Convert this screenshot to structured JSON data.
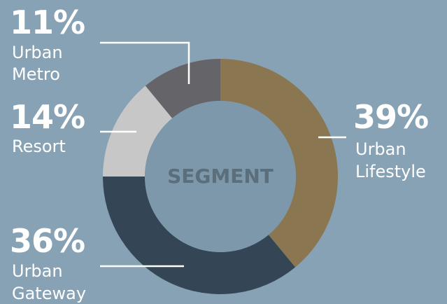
{
  "chart_data": {
    "type": "pie",
    "donut": true,
    "center_label": "SEGMENT",
    "start_angle_deg": 0,
    "slices": [
      {
        "name_line1": "Urban",
        "name_line2": "Lifestyle",
        "value": 39,
        "pct_label": "39%",
        "color": "#8a7650"
      },
      {
        "name_line1": "Urban",
        "name_line2": "Gateway",
        "value": 36,
        "pct_label": "36%",
        "color": "#344655"
      },
      {
        "name_line1": "Resort",
        "name_line2": "",
        "value": 14,
        "pct_label": "14%",
        "color": "#c7c7c7"
      },
      {
        "name_line1": "Urban",
        "name_line2": "Metro",
        "value": 11,
        "pct_label": "11%",
        "color": "#646469"
      }
    ],
    "leader_color": "#ffffff",
    "legend": "none"
  }
}
